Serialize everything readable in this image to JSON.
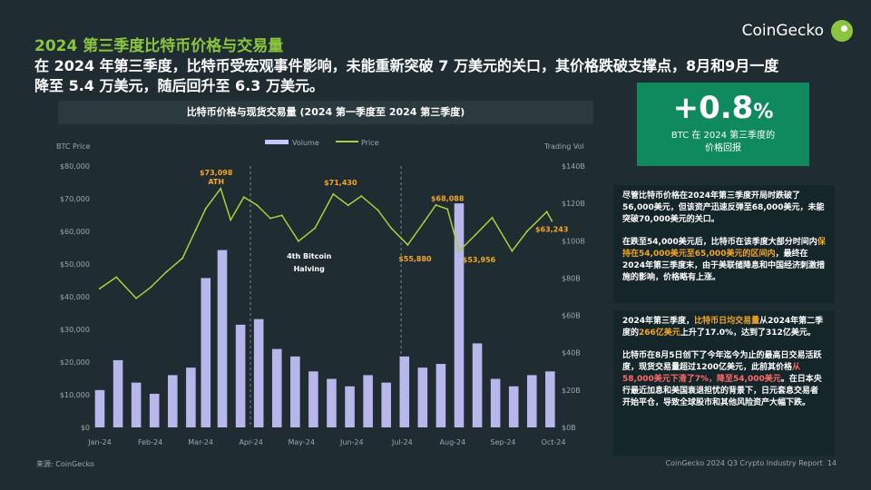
{
  "title": "2024 第三季度比特币价格与交易量",
  "headline": "在 2024 年第三季度，比特币受宏观事件影响，未能重新突破 7 万美元的关口，其价格跌破支撑点，8月和9月一度降至 5.4 万美元，随后回升至 6.3 万美元。",
  "brand": "CoinGecko",
  "stat": {
    "value": "+0.8",
    "unit": "%",
    "label_line1": "BTC 在 2024 第三季度的",
    "label_line2": "价格回报"
  },
  "panel1": {
    "p1": "尽管比特币价格在2024年第三季度开局时跌破了56,000美元，但该资产迅速反弹至68,000美元，未能突破70,000美元的关口。",
    "p2_a": "在跌至54,000美元后，比特币在该季度大部分时间内",
    "p2_hl": "保持在54,000美元至65,000美元的区间内",
    "p2_b": "，最终在2024年第三季度末，由于美联储降息和中国经济刺激措施的影响，价格略有上涨。"
  },
  "panel2": {
    "p1_a": "2024年第三季度，",
    "p1_hl1": "比特币日均交易量",
    "p1_b": "从2024年第二季度的",
    "p1_hl2": "266亿美元",
    "p1_c": "上升了17.0%，达到了312亿美元。",
    "p2_a": "比特币在8月5日创下了今年迄今为止的最高日交易活跃度，现货交易量超过1200亿美元，此前其价格",
    "p2_hl": "从58,000美元下滑了7%，降至54,000美元",
    "p2_b": "。在日本央行最近加息和美国衰退担忧的背景下，日元套息交易者开始平仓，导致全球股市和其他风险资产大幅下跌。"
  },
  "source": "来源: CoinGecko",
  "footer": "CoinGecko 2024 Q3 Crypto Industry Report",
  "page_number": "14",
  "colors": {
    "accent": "#8bc53f",
    "highlight": "#f5a623",
    "volume": "#c9c6ff",
    "price": "#a6d13a",
    "stat_bg": "#0f8a5f"
  },
  "chart_data": {
    "type": "bar",
    "title": "比特币价格与现货交易量 (2024 第一季度至 2024 第三季度)",
    "ylabel": "BTC Price",
    "y2label": "Trading Vol",
    "ylim": [
      0,
      80000
    ],
    "y2lim": [
      0,
      140
    ],
    "y_ticks": [
      "$0",
      "$10,000",
      "$20,000",
      "$30,000",
      "$40,000",
      "$50,000",
      "$60,000",
      "$70,000",
      "$80,000"
    ],
    "y2_ticks": [
      "$0B",
      "$20B",
      "$40B",
      "$60B",
      "$80B",
      "$100B",
      "$120B",
      "$140B"
    ],
    "x_labels": [
      "Jan-24",
      "Feb-24",
      "Mar-24",
      "Apr-24",
      "May-24",
      "Jun-24",
      "Jul-24",
      "Aug-24",
      "Sep-24",
      "Oct-24"
    ],
    "legend": [
      "Volume",
      "Price"
    ],
    "series": [
      {
        "name": "Price",
        "type": "line",
        "unit": "USD",
        "x": [
          "2024-01-01",
          "2024-01-11",
          "2024-01-23",
          "2024-02-01",
          "2024-02-10",
          "2024-02-20",
          "2024-02-28",
          "2024-03-05",
          "2024-03-14",
          "2024-03-20",
          "2024-03-28",
          "2024-04-05",
          "2024-04-13",
          "2024-04-20",
          "2024-04-30",
          "2024-05-10",
          "2024-05-21",
          "2024-05-30",
          "2024-06-07",
          "2024-06-17",
          "2024-06-25",
          "2024-07-05",
          "2024-07-15",
          "2024-07-22",
          "2024-07-29",
          "2024-08-05",
          "2024-08-15",
          "2024-08-25",
          "2024-09-06",
          "2024-09-15",
          "2024-09-27",
          "2024-09-30"
        ],
        "values": [
          42500,
          46000,
          39500,
          43000,
          47500,
          51800,
          60500,
          67000,
          73098,
          63500,
          70500,
          68000,
          64000,
          64900,
          57000,
          61000,
          71430,
          68000,
          70800,
          66500,
          61000,
          55880,
          63000,
          68088,
          66800,
          53956,
          59000,
          64200,
          54000,
          60000,
          66000,
          63243
        ]
      },
      {
        "name": "Volume",
        "type": "bar",
        "unit": "USD B",
        "x": [
          "2024-01-01",
          "2024-01-12",
          "2024-01-23",
          "2024-02-03",
          "2024-02-14",
          "2024-02-25",
          "2024-03-05",
          "2024-03-15",
          "2024-03-26",
          "2024-04-06",
          "2024-04-17",
          "2024-04-28",
          "2024-05-09",
          "2024-05-20",
          "2024-05-31",
          "2024-06-11",
          "2024-06-22",
          "2024-07-03",
          "2024-07-14",
          "2024-07-25",
          "2024-08-05",
          "2024-08-16",
          "2024-08-27",
          "2024-09-07",
          "2024-09-18",
          "2024-09-29"
        ],
        "values": [
          20,
          36,
          24,
          18,
          28,
          32,
          80,
          95,
          55,
          58,
          42,
          38,
          30,
          26,
          22,
          28,
          24,
          38,
          32,
          34,
          120,
          45,
          26,
          22,
          28,
          30
        ]
      }
    ],
    "annotations": [
      {
        "text": "$73,098",
        "x": "2024-03-14"
      },
      {
        "text": "ATH",
        "x": "2024-03-14"
      },
      {
        "text": "$71,430",
        "x": "2024-05-21"
      },
      {
        "text": "$68,088",
        "x": "2024-07-29"
      },
      {
        "text": "$55,880",
        "x": "2024-07-05"
      },
      {
        "text": "$53,956",
        "x": "2024-08-05"
      },
      {
        "text": "$63,243",
        "x": "2024-09-30"
      },
      {
        "text": "4th Bitcoin",
        "x": "2024-04-20"
      },
      {
        "text": "Halving",
        "x": "2024-04-20"
      }
    ],
    "event_lines": [
      "2024-04-01",
      "2024-07-01"
    ]
  }
}
